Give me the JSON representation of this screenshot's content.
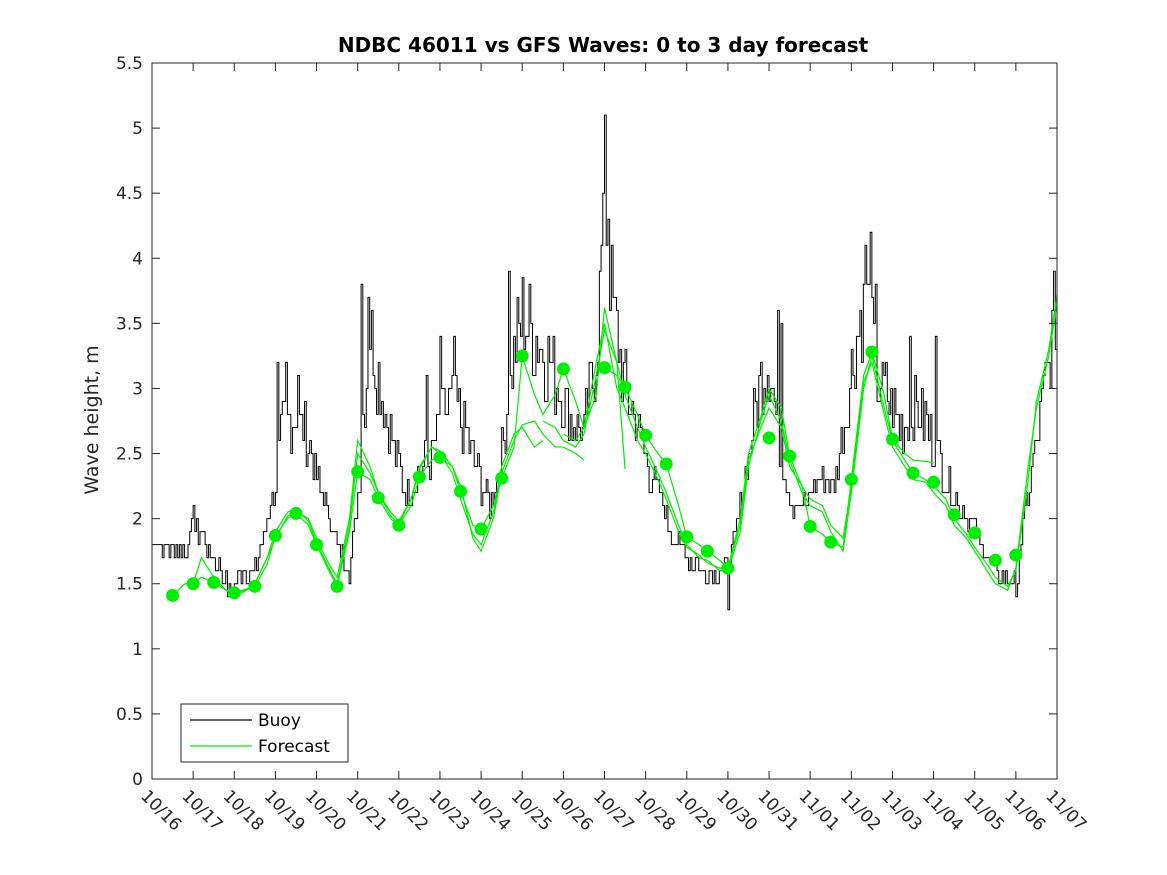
{
  "chart_data": {
    "type": "line",
    "title": "NDBC 46011 vs GFS Waves: 0 to 3 day forecast",
    "xlabel": "",
    "ylabel": "Wave height, m",
    "xlim": [
      0,
      22
    ],
    "ylim": [
      0,
      5.5
    ],
    "yticks": [
      0,
      0.5,
      1,
      1.5,
      2,
      2.5,
      3,
      3.5,
      4,
      4.5,
      5,
      5.5
    ],
    "ytick_labels": [
      "0",
      "0.5",
      "1",
      "1.5",
      "2",
      "2.5",
      "3",
      "3.5",
      "4",
      "4.5",
      "5",
      "5.5"
    ],
    "xtick_labels": [
      "10/16",
      "10/17",
      "10/18",
      "10/19",
      "10/20",
      "10/21",
      "10/22",
      "10/23",
      "10/24",
      "10/25",
      "10/26",
      "10/27",
      "10/28",
      "10/29",
      "10/30",
      "10/31",
      "11/01",
      "11/02",
      "11/03",
      "11/04",
      "11/05",
      "11/06",
      "11/07"
    ],
    "x_unit": "days since 10/16",
    "legend": {
      "position": "bottom-left",
      "entries": [
        "Buoy",
        "Forecast"
      ]
    },
    "colors": {
      "buoy": "#000000",
      "forecast": "#00ee00"
    },
    "buoy_anchors": {
      "x": [
        0,
        0.3,
        0.5,
        0.8,
        1.0,
        1.2,
        1.5,
        1.8,
        2.0,
        2.2,
        2.5,
        2.8,
        3.0,
        3.2,
        3.5,
        3.8,
        4.0,
        4.2,
        4.5,
        4.8,
        5.0,
        5.15,
        5.3,
        5.6,
        5.9,
        6.2,
        6.5,
        6.8,
        7.0,
        7.3,
        7.6,
        7.9,
        8.2,
        8.5,
        8.8,
        9.0,
        9.3,
        9.6,
        9.9,
        10.2,
        10.5,
        10.8,
        11.0,
        11.2,
        11.5,
        11.8,
        12.0,
        12.3,
        12.6,
        12.9,
        13.2,
        13.5,
        13.8,
        14.0,
        14.2,
        14.5,
        14.8,
        15.0,
        15.2,
        15.5,
        15.8,
        16.0,
        16.3,
        16.6,
        16.9,
        17.2,
        17.4,
        17.6,
        17.9,
        18.2,
        18.5,
        18.8,
        19.0,
        19.3,
        19.6,
        19.9,
        20.2,
        20.5,
        20.8,
        21.0,
        21.2,
        21.5,
        21.8,
        22.0
      ],
      "y": [
        1.85,
        1.75,
        1.8,
        1.75,
        1.95,
        1.85,
        1.7,
        1.5,
        1.45,
        1.6,
        1.6,
        2.0,
        2.3,
        2.75,
        2.8,
        2.6,
        2.3,
        2.1,
        1.8,
        1.6,
        2.2,
        2.9,
        3.45,
        2.95,
        2.5,
        2.2,
        2.35,
        2.5,
        2.75,
        2.9,
        2.7,
        2.35,
        2.1,
        2.5,
        3.25,
        3.6,
        3.4,
        3.25,
        3.0,
        2.75,
        2.65,
        3.3,
        4.45,
        3.6,
        3.0,
        2.7,
        2.45,
        2.2,
        1.9,
        1.75,
        1.65,
        1.6,
        1.6,
        1.65,
        1.9,
        2.5,
        3.1,
        3.25,
        2.7,
        2.15,
        2.05,
        2.2,
        2.3,
        2.25,
        2.9,
        3.55,
        3.65,
        3.1,
        2.9,
        2.7,
        2.85,
        2.75,
        2.55,
        2.3,
        2.1,
        2.0,
        1.75,
        1.6,
        1.5,
        1.5,
        2.0,
        2.6,
        3.2,
        3.7
      ]
    },
    "buoy_spikes": [
      {
        "x": 3.05,
        "y": 3.2
      },
      {
        "x": 3.25,
        "y": 3.2
      },
      {
        "x": 3.55,
        "y": 3.1
      },
      {
        "x": 5.1,
        "y": 3.8
      },
      {
        "x": 5.25,
        "y": 3.7
      },
      {
        "x": 6.65,
        "y": 3.1
      },
      {
        "x": 7.0,
        "y": 3.4
      },
      {
        "x": 7.35,
        "y": 3.4
      },
      {
        "x": 8.65,
        "y": 3.9
      },
      {
        "x": 9.0,
        "y": 3.85
      },
      {
        "x": 11.0,
        "y": 5.1
      },
      {
        "x": 10.95,
        "y": 4.5
      },
      {
        "x": 11.1,
        "y": 4.3
      },
      {
        "x": 15.2,
        "y": 3.6
      },
      {
        "x": 15.3,
        "y": 3.5
      },
      {
        "x": 17.35,
        "y": 4.1
      },
      {
        "x": 17.45,
        "y": 4.2
      },
      {
        "x": 17.6,
        "y": 3.8
      },
      {
        "x": 18.4,
        "y": 3.4
      },
      {
        "x": 19.05,
        "y": 3.4
      },
      {
        "x": 14.0,
        "y": 1.3
      },
      {
        "x": 21.0,
        "y": 1.4
      },
      {
        "x": 1.0,
        "y": 2.1
      },
      {
        "x": 1.9,
        "y": 1.4
      }
    ],
    "forecast_markers": {
      "x": [
        0.5,
        1.0,
        1.5,
        2.0,
        2.5,
        3.0,
        3.5,
        4.0,
        4.5,
        5.0,
        5.5,
        6.0,
        6.5,
        7.0,
        7.5,
        8.0,
        8.5,
        9.0,
        10.0,
        11.0,
        11.5,
        12.0,
        12.5,
        13.0,
        13.5,
        14.0,
        15.0,
        15.5,
        16.0,
        16.5,
        17.0,
        17.5,
        18.0,
        18.5,
        19.0,
        19.5,
        20.0,
        20.5,
        21.0
      ],
      "y": [
        1.41,
        1.5,
        1.51,
        1.43,
        1.48,
        1.87,
        2.04,
        1.8,
        1.48,
        2.36,
        2.16,
        1.95,
        2.32,
        2.47,
        2.21,
        1.92,
        2.31,
        3.25,
        3.15,
        3.16,
        3.01,
        2.64,
        2.42,
        1.86,
        1.75,
        1.62,
        2.62,
        2.48,
        1.94,
        1.82,
        2.3,
        3.28,
        2.61,
        2.35,
        2.28,
        2.03,
        1.89,
        1.68,
        1.72
      ]
    },
    "forecast_runs": [
      {
        "x": [
          0.5,
          0.8,
          1.0,
          1.2,
          1.5,
          1.8,
          2.0,
          2.2,
          2.5,
          2.8,
          3.0,
          3.3,
          3.5,
          3.8,
          4.0,
          4.3,
          4.5,
          4.8,
          5.0,
          5.3,
          5.5,
          5.8,
          6.0,
          6.3,
          6.5,
          6.8,
          7.0,
          7.3,
          7.5,
          7.8,
          8.0,
          8.3,
          8.5
        ],
        "y": [
          1.41,
          1.5,
          1.5,
          1.55,
          1.51,
          1.45,
          1.43,
          1.45,
          1.48,
          1.65,
          1.87,
          2.0,
          2.04,
          1.95,
          1.8,
          1.6,
          1.48,
          1.9,
          2.36,
          2.3,
          2.16,
          2.0,
          1.95,
          2.1,
          2.32,
          2.45,
          2.47,
          2.4,
          2.21,
          1.95,
          1.92,
          2.1,
          2.31
        ]
      },
      {
        "x": [
          1.0,
          1.2,
          1.5,
          1.8,
          2.0,
          2.3,
          2.5,
          2.8,
          3.0,
          3.3,
          3.5,
          3.8,
          4.0,
          4.3,
          4.5,
          4.8,
          5.0,
          5.3,
          5.5,
          5.8,
          6.0,
          6.3,
          6.5,
          6.8,
          7.0,
          7.3,
          7.5,
          7.8,
          8.0,
          8.3,
          8.5,
          8.8,
          9.0,
          9.3,
          9.5
        ],
        "y": [
          1.5,
          1.7,
          1.55,
          1.45,
          1.4,
          1.45,
          1.5,
          1.7,
          1.85,
          2.02,
          2.06,
          2.0,
          1.85,
          1.65,
          1.55,
          2.0,
          2.6,
          2.4,
          2.2,
          2.05,
          1.98,
          2.15,
          2.4,
          2.55,
          2.5,
          2.35,
          2.15,
          1.88,
          1.8,
          2.05,
          2.4,
          2.65,
          2.7,
          2.55,
          2.6
        ]
      },
      {
        "x": [
          2.0,
          2.3,
          2.5,
          2.8,
          3.0,
          3.3,
          3.5,
          3.8,
          4.0,
          4.3,
          4.5,
          4.8,
          5.0,
          5.3,
          5.5,
          5.8,
          6.0,
          6.3,
          6.5,
          6.8,
          7.0,
          7.3,
          7.5,
          7.8,
          8.0,
          8.3,
          8.5,
          8.8,
          9.0,
          9.3,
          9.5,
          9.8,
          10.0,
          10.3,
          10.5
        ],
        "y": [
          1.43,
          1.45,
          1.5,
          1.7,
          1.9,
          2.05,
          2.08,
          1.98,
          1.82,
          1.62,
          1.5,
          1.95,
          2.5,
          2.35,
          2.2,
          2.02,
          1.96,
          2.15,
          2.38,
          2.55,
          2.52,
          2.4,
          2.25,
          1.85,
          1.75,
          2.0,
          2.35,
          2.6,
          2.72,
          2.75,
          2.65,
          2.55,
          2.55,
          2.5,
          2.45
        ]
      },
      {
        "x": [
          8.5,
          8.8,
          9.0,
          9.3,
          9.5,
          9.8,
          10.0,
          10.3,
          10.5,
          10.8,
          11.0,
          11.3,
          11.5
        ],
        "y": [
          2.31,
          2.55,
          3.25,
          2.95,
          2.8,
          2.95,
          3.15,
          2.9,
          2.7,
          2.95,
          3.62,
          3.2,
          2.38
        ]
      },
      {
        "x": [
          9.5,
          9.8,
          10.0,
          10.3,
          10.5,
          10.8,
          11.0,
          11.3,
          11.5,
          11.8,
          12.0,
          12.3,
          12.5,
          12.8,
          13.0,
          13.3,
          13.5,
          13.8,
          14.0,
          14.3,
          14.5,
          14.8,
          15.0,
          15.3,
          15.5,
          15.8,
          16.0,
          16.3,
          16.5,
          16.8,
          17.0,
          17.3,
          17.5,
          17.8,
          18.0,
          18.3,
          18.5,
          18.8,
          19.0,
          19.3,
          19.5,
          19.8,
          20.0,
          20.3,
          20.5,
          20.8,
          21.0,
          21.3,
          21.5,
          21.8,
          22.0
        ],
        "y": [
          2.75,
          2.7,
          2.6,
          2.55,
          2.65,
          3.1,
          3.45,
          3.2,
          2.95,
          2.7,
          2.55,
          2.35,
          2.2,
          1.95,
          1.8,
          1.7,
          1.68,
          1.6,
          1.6,
          1.9,
          2.4,
          2.75,
          2.95,
          2.75,
          2.45,
          2.2,
          2.1,
          2.05,
          1.9,
          1.75,
          2.2,
          3.0,
          3.25,
          2.85,
          2.6,
          2.45,
          2.35,
          2.3,
          2.25,
          2.15,
          2.0,
          1.88,
          1.78,
          1.65,
          1.55,
          1.48,
          1.6,
          2.3,
          2.9,
          3.3,
          3.72
        ]
      },
      {
        "x": [
          10.0,
          10.3,
          10.5,
          10.8,
          11.0,
          11.3,
          11.5,
          11.8,
          12.0,
          12.3,
          12.5,
          12.8,
          13.0,
          13.3,
          13.5,
          13.8,
          14.0,
          14.3,
          14.5,
          14.8,
          15.0,
          15.3,
          15.5,
          15.8,
          16.0,
          16.3,
          16.5,
          16.8,
          17.0,
          17.3,
          17.5,
          17.8,
          18.0,
          18.3,
          18.5,
          18.8,
          19.0,
          19.3,
          19.5,
          19.8,
          20.0,
          20.3,
          20.5,
          20.8,
          21.0,
          21.3,
          21.5,
          21.8,
          22.0
        ],
        "y": [
          2.65,
          2.6,
          2.7,
          3.2,
          3.5,
          3.0,
          2.85,
          2.6,
          2.5,
          2.3,
          2.15,
          1.9,
          1.78,
          1.72,
          1.66,
          1.62,
          1.62,
          1.95,
          2.45,
          2.7,
          2.85,
          2.7,
          2.4,
          2.25,
          2.15,
          2.1,
          1.95,
          1.85,
          2.25,
          3.05,
          3.2,
          2.8,
          2.55,
          2.4,
          2.3,
          2.28,
          2.2,
          2.1,
          1.95,
          1.85,
          1.75,
          1.6,
          1.5,
          1.45,
          1.62,
          2.4,
          2.85,
          3.25,
          3.65
        ]
      },
      {
        "x": [
          11.0,
          11.3,
          11.5,
          11.8,
          12.0,
          12.3,
          12.5,
          12.8,
          13.0,
          13.3,
          13.5,
          13.8,
          14.0,
          14.3,
          14.5,
          14.8,
          15.0,
          15.3,
          15.5,
          15.8,
          16.0,
          16.3,
          16.5,
          16.8,
          17.0,
          17.3,
          17.5,
          17.8,
          18.0,
          18.3,
          18.5,
          18.8,
          19.0
        ],
        "y": [
          3.16,
          3.1,
          3.01,
          2.8,
          2.64,
          2.5,
          2.42,
          2.1,
          1.86,
          1.8,
          1.75,
          1.68,
          1.62,
          2.0,
          2.5,
          2.78,
          3.0,
          2.85,
          2.48,
          2.25,
          1.94,
          1.88,
          1.82,
          1.78,
          2.3,
          3.1,
          3.28,
          2.95,
          2.61,
          2.5,
          2.45,
          2.44,
          2.43
        ]
      }
    ]
  }
}
